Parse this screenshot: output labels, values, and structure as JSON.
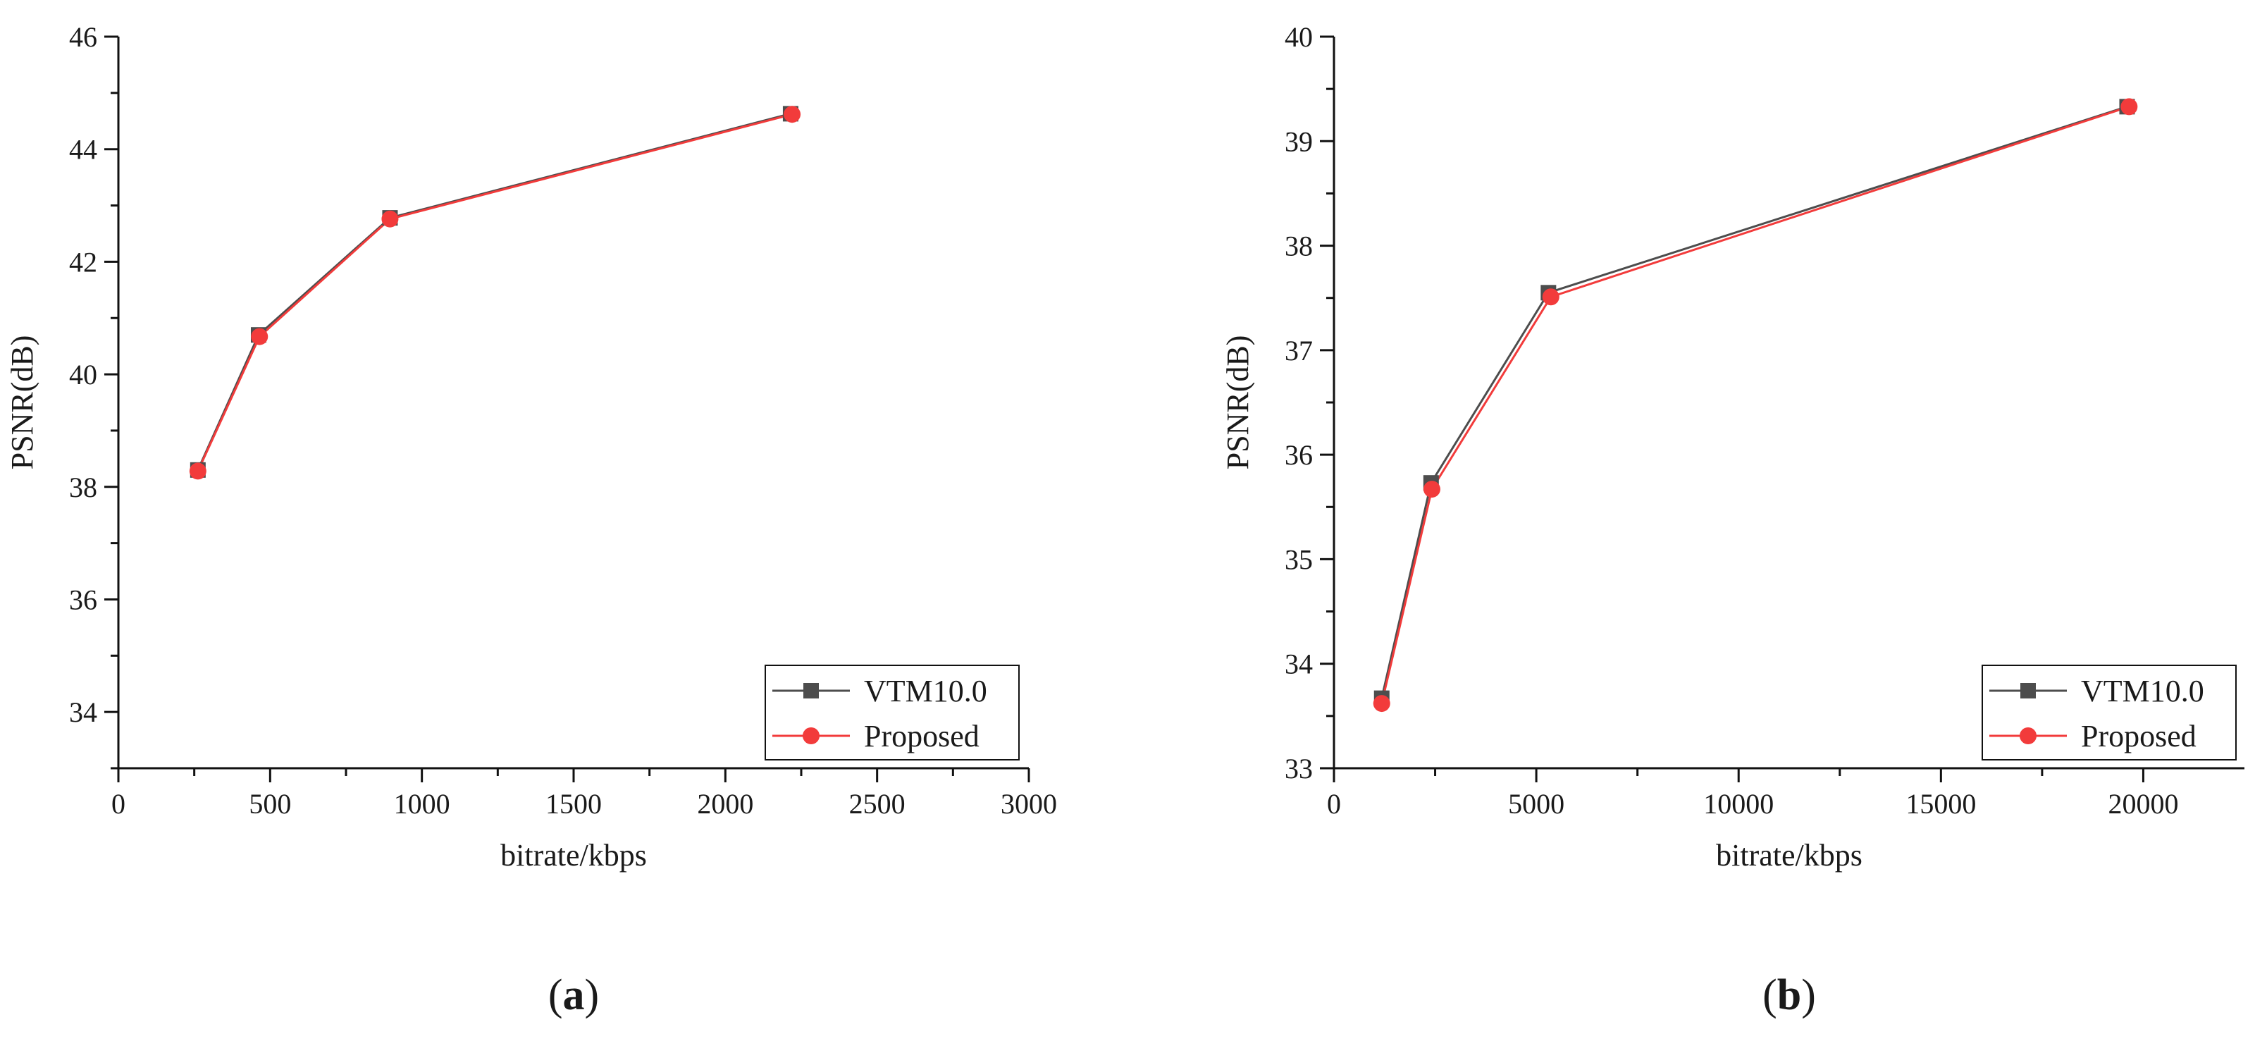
{
  "chart_data": [
    {
      "type": "line",
      "caption": "(a)",
      "caption_parts": [
        "(",
        "a",
        ")"
      ],
      "xlabel": "bitrate/kbps",
      "ylabel": "PSNR(dB)",
      "xlim": [
        0,
        3000
      ],
      "ylim": [
        33,
        46
      ],
      "xticks": [
        0,
        500,
        1000,
        1500,
        2000,
        2500,
        3000
      ],
      "yticks": [
        34,
        36,
        38,
        40,
        42,
        44,
        46
      ],
      "grid": false,
      "legend_position": "bottom-right",
      "series": [
        {
          "name": "VTM10.0",
          "marker": "square",
          "color": "#4d4d4d",
          "points": [
            [
              262,
              38.3
            ],
            [
              462,
              40.7
            ],
            [
              895,
              42.78
            ],
            [
              2215,
              44.63
            ]
          ]
        },
        {
          "name": "Proposed",
          "marker": "circle",
          "color": "#f23b3b",
          "points": [
            [
              262,
              38.28
            ],
            [
              465,
              40.67
            ],
            [
              895,
              42.76
            ],
            [
              2220,
              44.62
            ]
          ]
        }
      ]
    },
    {
      "type": "line",
      "caption": "(b)",
      "caption_parts": [
        "(",
        "b",
        ")"
      ],
      "xlabel": "bitrate/kbps",
      "ylabel": "PSNR(dB)",
      "xlim": [
        0,
        22500
      ],
      "ylim": [
        33,
        40
      ],
      "xticks": [
        0,
        5000,
        10000,
        15000,
        20000
      ],
      "yticks": [
        33,
        34,
        35,
        36,
        37,
        38,
        39,
        40
      ],
      "grid": false,
      "legend_position": "bottom-right",
      "series": [
        {
          "name": "VTM10.0",
          "marker": "square",
          "color": "#4d4d4d",
          "points": [
            [
              1180,
              33.67
            ],
            [
              2400,
              35.73
            ],
            [
              5300,
              37.55
            ],
            [
              19600,
              39.33
            ]
          ]
        },
        {
          "name": "Proposed",
          "marker": "circle",
          "color": "#f23b3b",
          "points": [
            [
              1180,
              33.62
            ],
            [
              2420,
              35.67
            ],
            [
              5360,
              37.51
            ],
            [
              19650,
              39.33
            ]
          ]
        }
      ]
    }
  ]
}
